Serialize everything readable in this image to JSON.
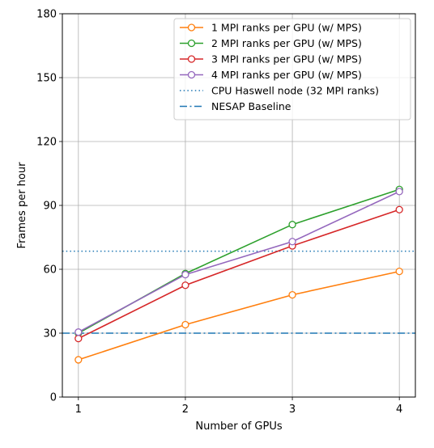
{
  "chart_data": {
    "type": "line",
    "title": "",
    "xlabel": "Number of GPUs",
    "ylabel": "Frames per hour",
    "x": [
      1,
      2,
      3,
      4
    ],
    "xticks": [
      1,
      2,
      3,
      4
    ],
    "xlim": [
      0.85,
      4.15
    ],
    "ylim": [
      0,
      180
    ],
    "yticks": [
      0,
      30,
      60,
      90,
      120,
      150,
      180
    ],
    "grid": true,
    "legend_position": "top-right",
    "series": [
      {
        "name": "1 MPI ranks per GPU (w/ MPS)",
        "color": "#ff7f0e",
        "style": "solid-marker",
        "values": [
          17.5,
          34,
          48,
          59
        ]
      },
      {
        "name": "2 MPI ranks per GPU (w/ MPS)",
        "color": "#2ca02c",
        "style": "solid-marker",
        "values": [
          30,
          58,
          81,
          97.5
        ]
      },
      {
        "name": "3 MPI ranks per GPU (w/ MPS)",
        "color": "#d62728",
        "style": "solid-marker",
        "values": [
          27.5,
          52.5,
          71,
          88
        ]
      },
      {
        "name": "4 MPI ranks per GPU (w/ MPS)",
        "color": "#9467bd",
        "style": "solid-marker",
        "values": [
          30.5,
          57.5,
          73,
          96.5
        ]
      }
    ],
    "hlines": [
      {
        "name": "CPU Haswell node (32 MPI ranks)",
        "color": "#1f77b4",
        "style": "dotted",
        "value": 68.5
      },
      {
        "name": "NESAP Baseline",
        "color": "#1f77b4",
        "style": "dashdot",
        "value": 30
      }
    ]
  }
}
